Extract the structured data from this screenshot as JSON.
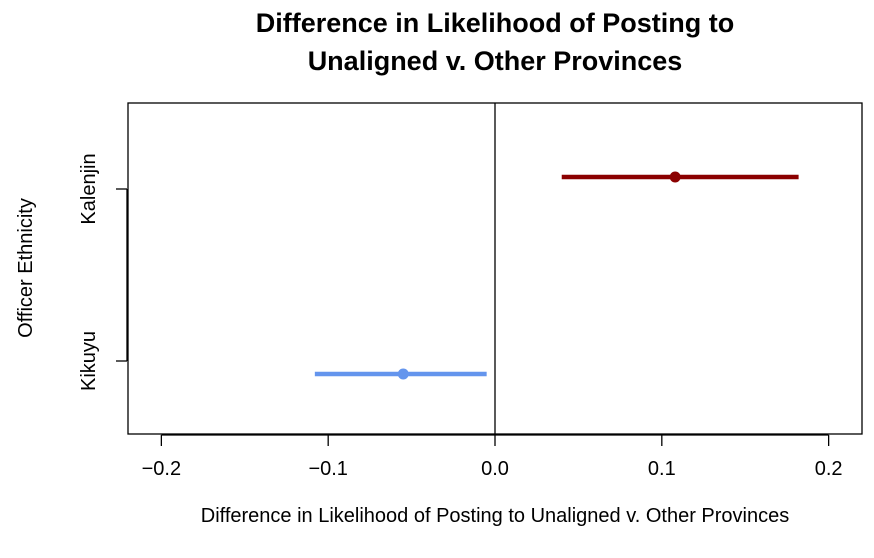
{
  "chart_data": {
    "type": "scatter",
    "title_line1": "Difference in Likelihood of Posting to",
    "title_line2": "Unaligned v. Other Provinces",
    "xlabel": "Difference in Likelihood of Posting to Unaligned v. Other Provinces",
    "ylabel": "Officer Ethnicity",
    "xlim": [
      -0.22,
      0.22
    ],
    "x_ticks": [
      -0.2,
      -0.1,
      0.0,
      0.1,
      0.2
    ],
    "x_tick_labels": [
      "−0.2",
      "−0.1",
      "0.0",
      "0.1",
      "0.2"
    ],
    "categories": [
      "Kikuyu",
      "Kalenjin"
    ],
    "reference_line_x": 0.0,
    "series": [
      {
        "category": "Kalenjin",
        "estimate": 0.108,
        "lower": 0.04,
        "upper": 0.182,
        "color": "#8b0000"
      },
      {
        "category": "Kikuyu",
        "estimate": -0.055,
        "lower": -0.108,
        "upper": -0.005,
        "color": "#6495ed"
      }
    ],
    "grid": false,
    "legend": "none"
  }
}
